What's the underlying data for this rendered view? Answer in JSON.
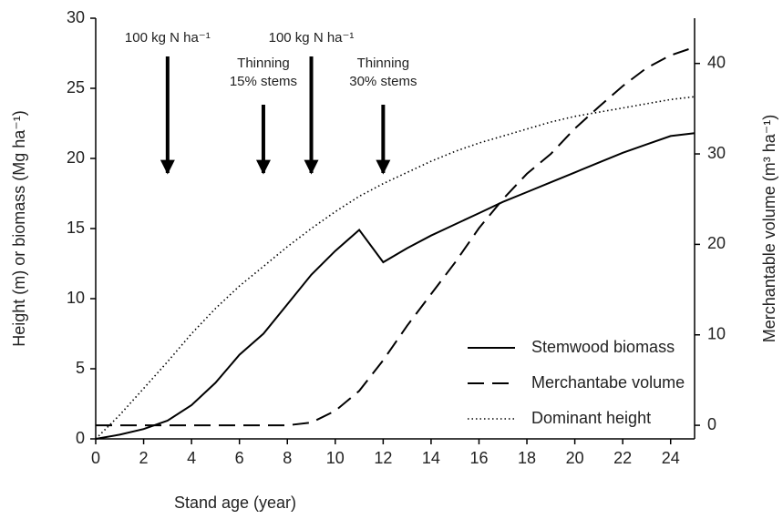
{
  "chart_data": {
    "type": "line",
    "x_label": "Stand age (year)",
    "y_label": "Height (m) or biomass (Mg ha⁻¹)",
    "y2_label": "Merchantable volume (m³ ha⁻¹)",
    "x": [
      0,
      1,
      2,
      3,
      4,
      5,
      6,
      7,
      8,
      9,
      10,
      11,
      12,
      13,
      14,
      15,
      16,
      17,
      18,
      19,
      20,
      21,
      22,
      23,
      24,
      25
    ],
    "xlim": [
      0,
      25
    ],
    "xticks": [
      0,
      2,
      4,
      6,
      8,
      10,
      12,
      14,
      16,
      18,
      20,
      22,
      24
    ],
    "ylim": [
      0,
      30
    ],
    "yticks": [
      0,
      5,
      10,
      15,
      20,
      25,
      30
    ],
    "y2lim": [
      -1.5,
      45
    ],
    "y2ticks": [
      0,
      10,
      20,
      30,
      40
    ],
    "legend": "lower right",
    "series": [
      {
        "name": "Stemwood biomass",
        "color": "#000000",
        "style": "solid",
        "values": [
          0,
          0.3,
          0.7,
          1.3,
          2.4,
          4,
          6,
          7.5,
          9.6,
          11.7,
          13.4,
          14.9,
          12.6,
          13.6,
          14.5,
          15.3,
          16.1,
          16.9,
          17.6,
          18.3,
          19,
          19.7,
          20.4,
          21,
          21.6,
          21.8
        ]
      },
      {
        "name": "Merchantabe volume",
        "color": "#000000",
        "style": "dashed",
        "axis": "y2",
        "values": [
          0,
          0,
          0,
          0,
          0,
          0,
          0,
          0,
          0,
          0.3,
          1.6,
          3.8,
          7.2,
          11,
          14.5,
          18,
          21.8,
          25,
          27.8,
          30,
          32.8,
          35.2,
          37.5,
          39.5,
          40.9,
          41.8
        ]
      },
      {
        "name": "Dominant height",
        "color": "#000000",
        "style": "dotted",
        "values": [
          0,
          1.7,
          3.6,
          5.5,
          7.5,
          9.3,
          10.9,
          12.3,
          13.7,
          15,
          16.2,
          17.3,
          18.2,
          19,
          19.8,
          20.5,
          21.1,
          21.6,
          22.1,
          22.6,
          23,
          23.3,
          23.6,
          23.9,
          24.2,
          24.4
        ]
      }
    ],
    "annotations": [
      {
        "x": 3,
        "lines": [
          "100 kg N ha⁻¹"
        ]
      },
      {
        "x": 7,
        "lines": [
          "Thinning",
          "15% stems"
        ]
      },
      {
        "x": 9,
        "lines": [
          "100 kg N ha⁻¹"
        ]
      },
      {
        "x": 12,
        "lines": [
          "Thinning",
          "30% stems"
        ]
      }
    ]
  }
}
